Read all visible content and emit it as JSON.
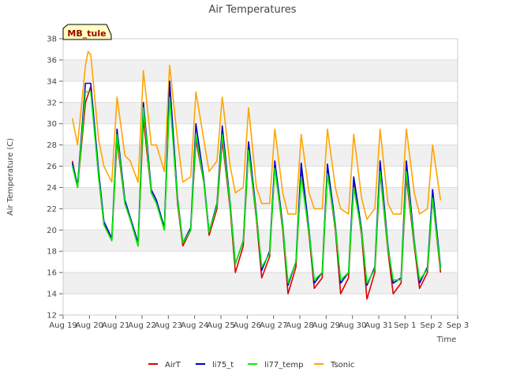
{
  "chart_data": {
    "type": "line",
    "title": "Air Temperatures",
    "xlabel": "Time",
    "ylabel": "Air Temperature (C)",
    "site_label": "MB_tule",
    "xlim": [
      0,
      15
    ],
    "ylim": [
      12,
      38
    ],
    "y_ticks": [
      12,
      14,
      16,
      18,
      20,
      22,
      24,
      26,
      28,
      30,
      32,
      34,
      36,
      38
    ],
    "x_ticks": [
      {
        "pos": 0,
        "label": "Aug 19"
      },
      {
        "pos": 1,
        "label": "Aug 20"
      },
      {
        "pos": 2,
        "label": "Aug 21"
      },
      {
        "pos": 3,
        "label": "Aug 22"
      },
      {
        "pos": 4,
        "label": "Aug 23"
      },
      {
        "pos": 5,
        "label": "Aug 24"
      },
      {
        "pos": 6,
        "label": "Aug 25"
      },
      {
        "pos": 7,
        "label": "Aug 26"
      },
      {
        "pos": 8,
        "label": "Aug 27"
      },
      {
        "pos": 9,
        "label": "Aug 28"
      },
      {
        "pos": 10,
        "label": "Aug 29"
      },
      {
        "pos": 11,
        "label": "Aug 30"
      },
      {
        "pos": 12,
        "label": "Aug 31"
      },
      {
        "pos": 13,
        "label": "Sep 1"
      },
      {
        "pos": 14,
        "label": "Sep 2"
      },
      {
        "pos": 15,
        "label": "Sep 3"
      }
    ],
    "grid": "horizontal bands",
    "legend_position": "bottom",
    "x_units": "days since Aug 19 00:00",
    "series": [
      {
        "name": "AirT",
        "color": "#dd0000",
        "x": [
          0.35,
          0.55,
          0.85,
          1.05,
          1.35,
          1.55,
          1.85,
          2.05,
          2.35,
          2.55,
          2.85,
          3.05,
          3.35,
          3.55,
          3.85,
          4.05,
          4.35,
          4.55,
          4.85,
          5.05,
          5.35,
          5.55,
          5.85,
          6.05,
          6.35,
          6.55,
          6.85,
          7.05,
          7.35,
          7.55,
          7.85,
          8.05,
          8.35,
          8.55,
          8.85,
          9.05,
          9.35,
          9.55,
          9.85,
          10.05,
          10.35,
          10.55,
          10.85,
          11.05,
          11.35,
          11.55,
          11.85,
          12.05,
          12.35,
          12.55,
          12.85,
          13.05,
          13.35,
          13.55,
          13.85,
          14.05,
          14.35
        ],
        "y": [
          26.5,
          24.0,
          32.0,
          33.5,
          25.0,
          20.5,
          19.0,
          28.5,
          22.5,
          21.0,
          18.5,
          30.5,
          23.5,
          22.5,
          20.0,
          33.0,
          22.5,
          18.5,
          20.0,
          28.5,
          24.5,
          19.5,
          22.0,
          28.5,
          22.0,
          16.0,
          18.5,
          27.5,
          21.0,
          15.5,
          17.5,
          26.0,
          20.0,
          14.0,
          16.5,
          25.5,
          19.5,
          14.5,
          15.5,
          25.5,
          20.0,
          14.0,
          15.5,
          24.5,
          19.5,
          13.5,
          16.0,
          25.5,
          18.0,
          14.0,
          15.0,
          25.0,
          18.5,
          14.5,
          16.0,
          23.0,
          16.0
        ]
      },
      {
        "name": "li75_t",
        "color": "#0000cc",
        "x": [
          0.35,
          0.55,
          0.85,
          1.05,
          1.35,
          1.55,
          1.85,
          2.05,
          2.35,
          2.55,
          2.85,
          3.05,
          3.35,
          3.55,
          3.85,
          4.05,
          4.35,
          4.55,
          4.85,
          5.05,
          5.35,
          5.55,
          5.85,
          6.05,
          6.35,
          6.55,
          6.85,
          7.05,
          7.35,
          7.55,
          7.85,
          8.05,
          8.35,
          8.55,
          8.85,
          9.05,
          9.35,
          9.55,
          9.85,
          10.05,
          10.35,
          10.55,
          10.85,
          11.05,
          11.35,
          11.55,
          11.85,
          12.05,
          12.35,
          12.55,
          12.85,
          13.05,
          13.35,
          13.55,
          13.85,
          14.05,
          14.35
        ],
        "y": [
          26.3,
          24.2,
          33.8,
          33.8,
          25.5,
          20.8,
          19.2,
          29.5,
          22.8,
          21.2,
          18.8,
          32.0,
          23.8,
          22.8,
          20.2,
          34.0,
          23.0,
          18.8,
          20.2,
          30.0,
          24.8,
          19.8,
          22.5,
          29.8,
          22.5,
          16.8,
          19.0,
          28.3,
          21.5,
          16.2,
          18.0,
          26.5,
          20.5,
          14.8,
          17.0,
          26.3,
          20.0,
          15.0,
          16.0,
          26.2,
          20.5,
          15.0,
          16.0,
          25.0,
          20.0,
          14.8,
          16.5,
          26.5,
          18.5,
          15.0,
          15.5,
          26.5,
          19.0,
          15.0,
          16.5,
          23.8,
          16.5
        ]
      },
      {
        "name": "li77_temp",
        "color": "#00ee00",
        "x": [
          0.35,
          0.55,
          0.85,
          1.05,
          1.35,
          1.55,
          1.85,
          2.05,
          2.35,
          2.55,
          2.85,
          3.05,
          3.35,
          3.55,
          3.85,
          4.05,
          4.35,
          4.55,
          4.85,
          5.05,
          5.35,
          5.55,
          5.85,
          6.05,
          6.35,
          6.55,
          6.85,
          7.05,
          7.35,
          7.55,
          7.85,
          8.05,
          8.35,
          8.55,
          8.85,
          9.05,
          9.35,
          9.55,
          9.85,
          10.05,
          10.35,
          10.55,
          10.85,
          11.05,
          11.35,
          11.55,
          11.85,
          12.05,
          12.35,
          12.55,
          12.85,
          13.05,
          13.35,
          13.55,
          13.85,
          14.05,
          14.35
        ],
        "y": [
          26.0,
          24.0,
          33.0,
          33.0,
          25.0,
          20.5,
          19.0,
          29.0,
          22.5,
          21.0,
          18.5,
          31.5,
          23.5,
          22.5,
          20.0,
          32.5,
          22.8,
          18.8,
          20.0,
          29.0,
          24.5,
          19.8,
          22.3,
          29.0,
          22.3,
          16.8,
          19.0,
          27.5,
          21.3,
          16.5,
          17.8,
          25.8,
          20.3,
          15.0,
          17.0,
          25.0,
          19.8,
          15.3,
          16.0,
          25.3,
          20.3,
          15.3,
          16.0,
          24.0,
          19.8,
          15.0,
          16.3,
          25.5,
          18.3,
          15.3,
          15.3,
          25.5,
          18.8,
          15.3,
          16.3,
          23.0,
          16.3
        ]
      },
      {
        "name": "Tsonic",
        "color": "#ffa500",
        "x": [
          0.35,
          0.55,
          0.85,
          0.95,
          1.05,
          1.35,
          1.55,
          1.85,
          2.05,
          2.35,
          2.55,
          2.85,
          3.05,
          3.35,
          3.55,
          3.85,
          4.05,
          4.35,
          4.55,
          4.85,
          5.05,
          5.35,
          5.55,
          5.85,
          6.05,
          6.35,
          6.55,
          6.85,
          7.05,
          7.35,
          7.55,
          7.85,
          8.05,
          8.35,
          8.55,
          8.85,
          9.05,
          9.35,
          9.55,
          9.85,
          10.05,
          10.35,
          10.55,
          10.85,
          11.05,
          11.35,
          11.55,
          11.85,
          12.05,
          12.35,
          12.55,
          12.85,
          13.05,
          13.35,
          13.55,
          13.85,
          14.05,
          14.35
        ],
        "y": [
          30.5,
          28.0,
          35.5,
          36.8,
          36.5,
          28.5,
          26.0,
          24.5,
          32.5,
          27.0,
          26.5,
          24.5,
          35.0,
          28.0,
          28.0,
          25.5,
          35.5,
          28.5,
          24.5,
          25.0,
          33.0,
          28.5,
          25.5,
          26.5,
          32.5,
          26.0,
          23.5,
          24.0,
          31.5,
          24.0,
          22.5,
          22.5,
          29.5,
          23.5,
          21.5,
          21.5,
          29.0,
          23.5,
          22.0,
          22.0,
          29.5,
          24.0,
          22.0,
          21.5,
          29.0,
          23.0,
          21.0,
          22.0,
          29.5,
          22.5,
          21.5,
          21.5,
          29.5,
          23.5,
          21.5,
          22.0,
          28.0,
          22.8
        ]
      }
    ]
  }
}
